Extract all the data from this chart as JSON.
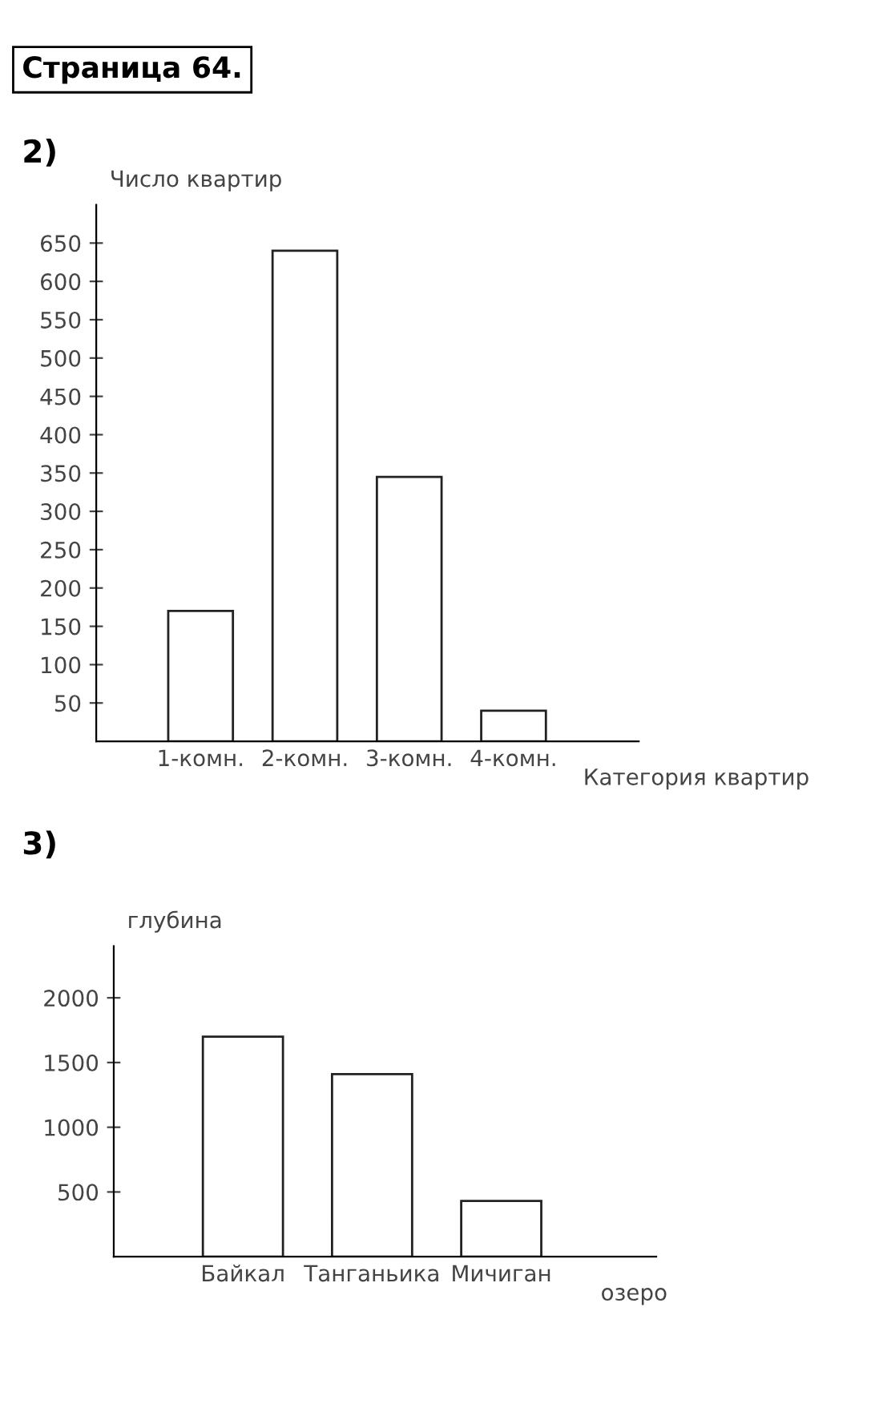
{
  "chart_data": [
    {
      "type": "bar",
      "annotations": [
        "Страница 64.",
        "2)"
      ],
      "ylabel": "Число квартир",
      "xlabel": "Категория квартир",
      "categories": [
        "1-комн.",
        "2-комн.",
        "3-комн.",
        "4-комн."
      ],
      "values": [
        170,
        640,
        345,
        40
      ],
      "color": "#ffffff",
      "ylim": [
        0,
        700
      ],
      "yticks": [
        50,
        100,
        150,
        200,
        250,
        300,
        350,
        400,
        450,
        500,
        550,
        600,
        650
      ],
      "grid": false
    },
    {
      "type": "bar",
      "annotations": [
        "3)"
      ],
      "ylabel": "глубина",
      "xlabel": "озеро",
      "categories": [
        "Байкал",
        "Танганьика",
        "Мичиган"
      ],
      "values": [
        1700,
        1410,
        430
      ],
      "color": "#ffffff",
      "ylim": [
        0,
        2400
      ],
      "yticks": [
        500,
        1000,
        1500,
        2000
      ],
      "grid": false
    }
  ]
}
